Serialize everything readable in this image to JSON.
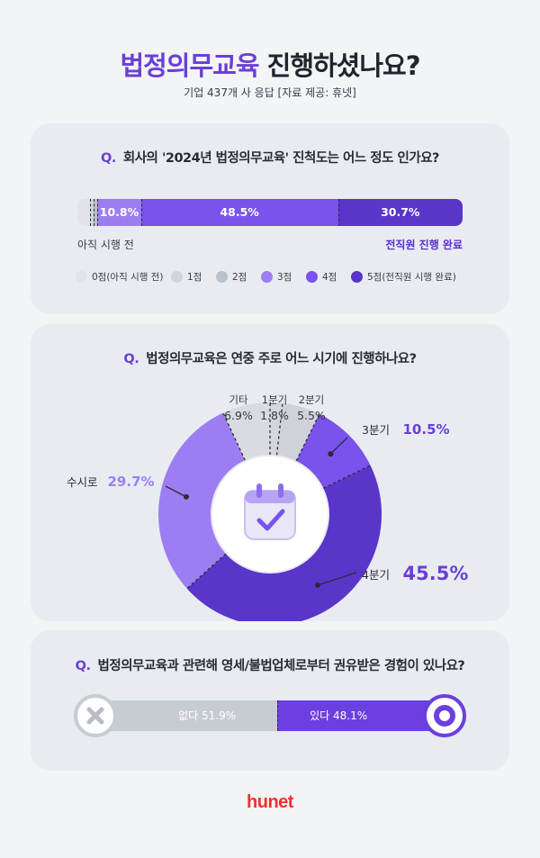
{
  "header": {
    "title_highlight": "법정의무교육",
    "title_rest": "진행하셨나요?",
    "subtitle": "기업 437개 사 응답 [자료 제공: 휴넷]"
  },
  "section1": {
    "q_mark": "Q.",
    "question": "회사의 '2024년 법정의무교육' 진척도는 어느 정도 인가요?",
    "left_end_label": "아직 시행 전",
    "right_end_label": "전직원 진행 완료",
    "legend": [
      "0점(아직 시행 전)",
      "1점",
      "2점",
      "3점",
      "4점",
      "5점(전직원 시행 완료)"
    ]
  },
  "section2": {
    "q_mark": "Q.",
    "question": "법정의무교육은 연중 주로 어느 시기에 진행하나요?"
  },
  "section3": {
    "q_mark": "Q.",
    "question": "법정의무교육과 관련해 영세/불법업체로부터 권유받은 경험이 있나요?"
  },
  "brand": "hunet",
  "colors": {
    "accent": "#6b3fd6",
    "score0": "#e0e3e8",
    "score1": "#d0d4da",
    "score2": "#bcc1c9",
    "score3": "#9d7ef2",
    "score4": "#7a52ec",
    "score5": "#5a35c9",
    "brand": "#e8342e"
  },
  "chart_data": [
    {
      "type": "bar",
      "orientation": "stacked-horizontal",
      "categories": [
        "0점(아직 시행 전)",
        "1점",
        "2점",
        "3점",
        "4점",
        "5점(전직원 시행 완료)"
      ],
      "values": [
        3.0,
        1.0,
        0.9,
        10.8,
        48.5,
        30.7
      ],
      "value_labels": [
        "",
        "",
        "",
        "10.8%",
        "48.5%",
        "30.7%"
      ],
      "unit": "%"
    },
    {
      "type": "pie",
      "subtype": "donut",
      "slices": [
        {
          "label": "1분기",
          "value": 1.8,
          "display": "1.8%"
        },
        {
          "label": "2분기",
          "value": 5.5,
          "display": "5.5%"
        },
        {
          "label": "3분기",
          "value": 10.5,
          "display": "10.5%"
        },
        {
          "label": "4분기",
          "value": 45.5,
          "display": "45.5%"
        },
        {
          "label": "수시로",
          "value": 29.7,
          "display": "29.7%"
        },
        {
          "label": "기타",
          "value": 6.9,
          "display": "6.9%"
        }
      ],
      "unit": "%"
    },
    {
      "type": "bar",
      "orientation": "stacked-horizontal",
      "categories": [
        "없다",
        "있다"
      ],
      "values": [
        51.9,
        48.1
      ],
      "value_labels": [
        "51.9%",
        "48.1%"
      ],
      "unit": "%"
    }
  ]
}
